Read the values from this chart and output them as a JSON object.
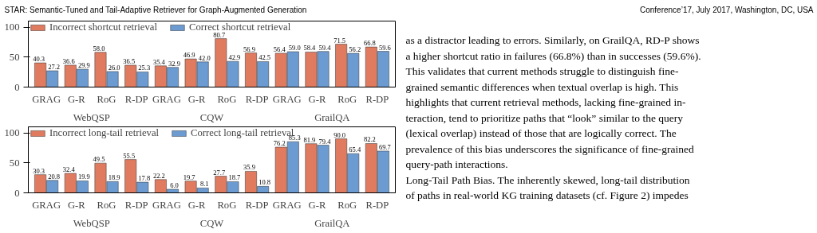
{
  "chart_data": [
    {
      "type": "bar",
      "categories": [
        "GRAG",
        "G-R",
        "RoG",
        "R-DP",
        "GRAG",
        "G-R",
        "RoG",
        "R-DP",
        "GRAG",
        "G-R",
        "RoG",
        "R-DP"
      ],
      "ylim": [
        0,
        110
      ],
      "yticks": [
        0,
        50,
        100
      ],
      "legend": "top",
      "annotations": [
        "WebQSP",
        "CQW",
        "GrailQA"
      ],
      "series": [
        {
          "name": "Incorrect shortcut retrieval",
          "color": "#e07b60",
          "values": [
            40.3,
            36.6,
            58.0,
            36.5,
            35.4,
            46.9,
            80.7,
            56.9,
            56.4,
            58.4,
            71.5,
            66.8
          ],
          "value_labels": [
            "40.3",
            "36.6",
            "58.0",
            "36.5",
            "35.4",
            "46.9",
            "80.7",
            "56.9",
            "56.4",
            "58.4",
            "71.5",
            "66.8"
          ]
        },
        {
          "name": "Correct shortcut retrieval",
          "color": "#6b9bd1",
          "values": [
            27.2,
            29.9,
            26.0,
            25.3,
            32.9,
            42.0,
            42.9,
            42.5,
            59.0,
            59.4,
            56.2,
            59.6
          ],
          "value_labels": [
            "27.2",
            "29.9",
            "26.0",
            "25.3",
            "32.9",
            "42.0",
            "42.9",
            "42.5",
            "59.0",
            "59.4",
            "56.2",
            "59.6"
          ]
        }
      ]
    },
    {
      "type": "bar",
      "categories": [
        "GRAG",
        "G-R",
        "RoG",
        "R-DP",
        "GRAG",
        "G-R",
        "RoG",
        "R-DP",
        "GRAG",
        "G-R",
        "RoG",
        "R-DP"
      ],
      "ylim": [
        0,
        110
      ],
      "yticks": [
        0,
        50,
        100
      ],
      "legend": "top",
      "annotations": [
        "WebQSP",
        "CQW",
        "GrailQA"
      ],
      "series": [
        {
          "name": "Incorrect long-tail retrieval",
          "color": "#e07b60",
          "values": [
            30.3,
            32.4,
            49.5,
            55.5,
            22.2,
            19.7,
            27.7,
            35.9,
            76.2,
            81.9,
            90.0,
            82.2
          ],
          "value_labels": [
            "30.3",
            "32.4",
            "49.5",
            "55.5",
            "22.2",
            "19.7",
            "27.7",
            "35.9",
            "76.2",
            "81.9",
            "90.0",
            "82.2"
          ]
        },
        {
          "name": "Correct long-tail retrieval",
          "color": "#6b9bd1",
          "values": [
            20.8,
            19.9,
            18.9,
            17.8,
            6.0,
            8.1,
            18.7,
            10.8,
            85.3,
            79.4,
            65.4,
            69.7
          ],
          "value_labels": [
            "20.8",
            "19.9",
            "18.9",
            "17.8",
            "6.0",
            "8.1",
            "18.7",
            "10.8",
            "85.3",
            "79.4",
            "65.4",
            "69.7"
          ]
        }
      ]
    },
    {
      "type": "other",
      "annotations": [
        "STAR: Semantic-Tuned and Tail-Adaptive Retriever for Graph-Augmented Generation",
        "Conference’17, July 2017, Washington, DC, USA",
        "as a distractor leading to errors. Similarly, on GrailQA, RD-P shows",
        "a higher shortcut ratio in failures (66.8%) than in successes (59.6%).",
        "This validates that current methods struggle to distinguish fine-",
        "grained semantic differences when textual overlap is high. This",
        "highlights that current retrieval methods, lacking fine-grained in-",
        "teraction, tend to prioritize paths that “look” similar to the query",
        "(lexical overlap) instead of those that are logically correct. The",
        "prevalence of this bias underscores the significance of fine-grained",
        "query-path interactions.",
        "Long-Tail Path Bias. The inherently skewed, long-tail distribution",
        "of paths in real-world KG training datasets (cf. Figure 2) impedes"
      ]
    }
  ]
}
